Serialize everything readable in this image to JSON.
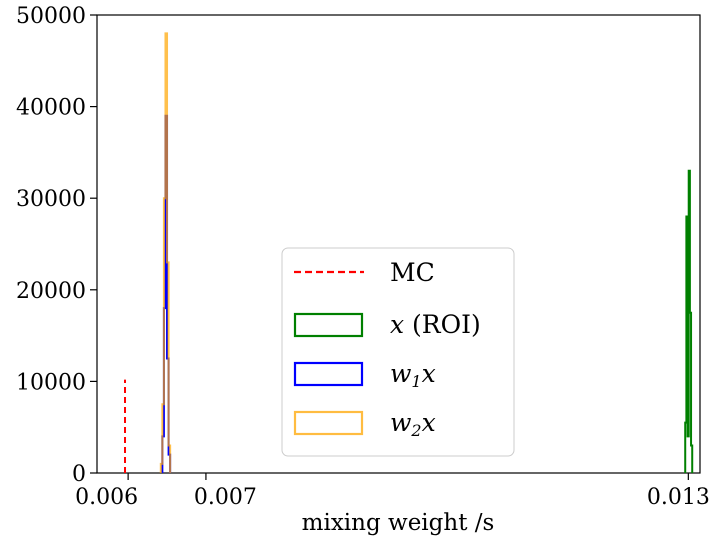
{
  "chart_data": {
    "type": "histogram",
    "title": "",
    "xlabel": "mixing weight /s",
    "ylabel": "",
    "xlim": [
      0.0056,
      0.01335
    ],
    "ylim": [
      0,
      50000
    ],
    "x_ticks": [
      {
        "value": 0.006,
        "label": "0.006"
      },
      {
        "value": 0.007,
        "label": "0.007"
      },
      {
        "value": 0.0132,
        "label": "0.0132"
      }
    ],
    "y_ticks": [
      {
        "value": 0,
        "label": "0"
      },
      {
        "value": 10000,
        "label": "10000"
      },
      {
        "value": 20000,
        "label": "20000"
      },
      {
        "value": 30000,
        "label": "30000"
      },
      {
        "value": 40000,
        "label": "40000"
      },
      {
        "value": 50000,
        "label": "50000"
      }
    ],
    "legend_position": "center-bottom",
    "series": [
      {
        "name": "MC",
        "kind": "vline",
        "color": "#ff0000",
        "dash": true,
        "x": 0.00596,
        "y": 10200
      },
      {
        "name": "x (ROI)",
        "kind": "step",
        "color": "#008000",
        "bins": [
          [
            0.01316,
            0.013175,
            5500
          ],
          [
            0.013175,
            0.01319,
            28000
          ],
          [
            0.01319,
            0.013205,
            4000
          ],
          [
            0.013205,
            0.01322,
            33000
          ],
          [
            0.01322,
            0.013235,
            17500
          ],
          [
            0.013235,
            0.01325,
            3000
          ]
        ]
      },
      {
        "name": "w1x",
        "kind": "step",
        "color": "#0000ff",
        "bins": [
          [
            0.00644,
            0.00646,
            4000
          ],
          [
            0.00646,
            0.00648,
            18000
          ],
          [
            0.00648,
            0.0065,
            39000
          ],
          [
            0.0065,
            0.00652,
            12500
          ],
          [
            0.00652,
            0.00654,
            2000
          ]
        ]
      },
      {
        "name": "w2x",
        "kind": "step",
        "color": "#ffa500",
        "bins": [
          [
            0.00642,
            0.00644,
            1000
          ],
          [
            0.00644,
            0.00646,
            7500
          ],
          [
            0.00646,
            0.00648,
            30000
          ],
          [
            0.00648,
            0.0065,
            48000
          ],
          [
            0.0065,
            0.00652,
            23000
          ],
          [
            0.00652,
            0.00654,
            3000
          ]
        ]
      }
    ]
  }
}
